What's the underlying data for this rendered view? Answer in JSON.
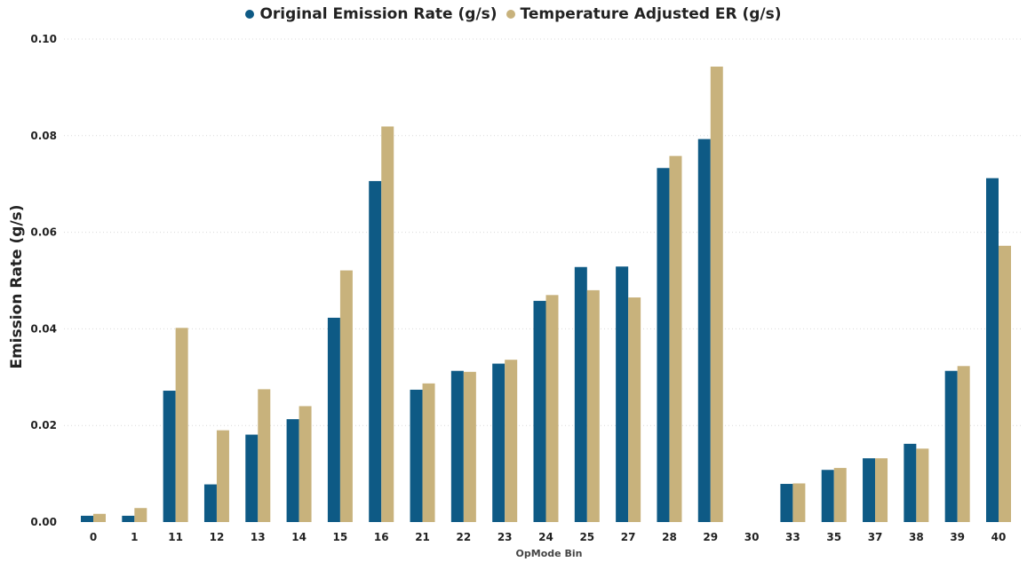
{
  "chart_data": {
    "type": "bar",
    "title": "",
    "xlabel": "OpMode Bin",
    "ylabel": "Emission Rate (g/s)",
    "ylim": [
      0,
      0.1
    ],
    "yticks": [
      "0.00",
      "0.02",
      "0.04",
      "0.06",
      "0.08",
      "0.10"
    ],
    "grid": true,
    "legend_position": "top-center",
    "categories": [
      "0",
      "1",
      "11",
      "12",
      "13",
      "14",
      "15",
      "16",
      "21",
      "22",
      "23",
      "24",
      "25",
      "27",
      "28",
      "29",
      "30",
      "33",
      "35",
      "37",
      "38",
      "39",
      "40"
    ],
    "series": [
      {
        "name": "Original Emission Rate (g/s)",
        "color": "#0e5a85",
        "values": [
          0.0013,
          0.0013,
          0.0272,
          0.0078,
          0.0181,
          0.0213,
          0.0423,
          0.0706,
          0.0274,
          0.0313,
          0.0328,
          0.0458,
          0.0528,
          0.0529,
          0.0733,
          0.0793,
          0,
          0.0079,
          0.0108,
          0.0132,
          0.0162,
          0.0313,
          0.0712
        ]
      },
      {
        "name": "Temperature Adjusted ER (g/s)",
        "color": "#c8b27c",
        "values": [
          0.0017,
          0.0029,
          0.0402,
          0.019,
          0.0275,
          0.024,
          0.0521,
          0.0819,
          0.0287,
          0.0311,
          0.0336,
          0.047,
          0.048,
          0.0465,
          0.0758,
          0.0943,
          0,
          0.008,
          0.0112,
          0.0132,
          0.0152,
          0.0323,
          0.0572
        ]
      }
    ]
  }
}
